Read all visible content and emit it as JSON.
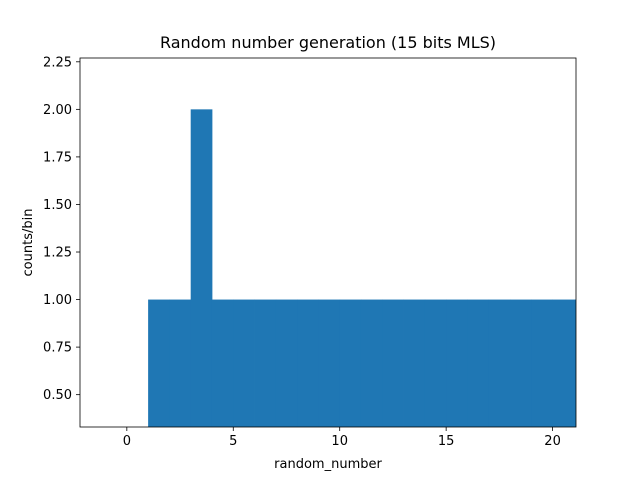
{
  "chart_data": {
    "type": "bar",
    "title": "Random number generation (15 bits MLS)",
    "xlabel": "random_number",
    "ylabel": "counts/bin",
    "xlim": [
      -2.2,
      21.1
    ],
    "ylim": [
      0.33,
      2.27
    ],
    "xticks": [
      0,
      5,
      10,
      15,
      20
    ],
    "xtick_labels": [
      "0",
      "5",
      "10",
      "15",
      "20"
    ],
    "yticks": [
      0.5,
      0.75,
      1.0,
      1.25,
      1.5,
      1.75,
      2.0,
      2.25
    ],
    "ytick_labels": [
      "0.50",
      "0.75",
      "1.00",
      "1.25",
      "1.50",
      "1.75",
      "2.00",
      "2.25"
    ],
    "bin_width": 1,
    "bins": [
      {
        "x": 1,
        "value": 1
      },
      {
        "x": 2,
        "value": 1
      },
      {
        "x": 3,
        "value": 2
      },
      {
        "x": 4,
        "value": 1
      },
      {
        "x": 5,
        "value": 1
      },
      {
        "x": 6,
        "value": 1
      },
      {
        "x": 7,
        "value": 1
      },
      {
        "x": 8,
        "value": 1
      },
      {
        "x": 9,
        "value": 1
      },
      {
        "x": 10,
        "value": 1
      },
      {
        "x": 11,
        "value": 1
      },
      {
        "x": 12,
        "value": 1
      },
      {
        "x": 13,
        "value": 1
      },
      {
        "x": 14,
        "value": 1
      },
      {
        "x": 15,
        "value": 1
      },
      {
        "x": 16,
        "value": 1
      },
      {
        "x": 17,
        "value": 1
      },
      {
        "x": 18,
        "value": 1
      },
      {
        "x": 19,
        "value": 1
      },
      {
        "x": 20,
        "value": 1
      },
      {
        "x": 21,
        "value": 1
      }
    ],
    "bar_color": "#1f77b4",
    "grid": false,
    "legend": "none"
  }
}
